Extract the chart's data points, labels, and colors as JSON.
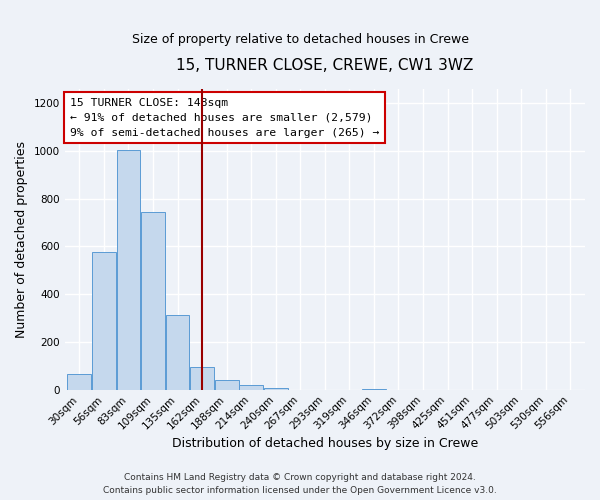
{
  "title": "15, TURNER CLOSE, CREWE, CW1 3WZ",
  "subtitle": "Size of property relative to detached houses in Crewe",
  "xlabel": "Distribution of detached houses by size in Crewe",
  "ylabel": "Number of detached properties",
  "bar_labels": [
    "30sqm",
    "56sqm",
    "83sqm",
    "109sqm",
    "135sqm",
    "162sqm",
    "188sqm",
    "214sqm",
    "240sqm",
    "267sqm",
    "293sqm",
    "319sqm",
    "346sqm",
    "372sqm",
    "398sqm",
    "425sqm",
    "451sqm",
    "477sqm",
    "503sqm",
    "530sqm",
    "556sqm"
  ],
  "bar_values": [
    65,
    575,
    1005,
    745,
    315,
    97,
    40,
    20,
    8,
    0,
    0,
    0,
    5,
    0,
    0,
    0,
    0,
    0,
    0,
    0,
    0
  ],
  "bar_color": "#c5d8ed",
  "bar_edge_color": "#5b9bd5",
  "property_line_x": 5.0,
  "property_line_color": "#990000",
  "annotation_title": "15 TURNER CLOSE: 148sqm",
  "annotation_line1": "← 91% of detached houses are smaller (2,579)",
  "annotation_line2": "9% of semi-detached houses are larger (265) →",
  "annotation_box_color": "#ffffff",
  "annotation_box_edge_color": "#cc0000",
  "ylim": [
    0,
    1260
  ],
  "yticks": [
    0,
    200,
    400,
    600,
    800,
    1000,
    1200
  ],
  "footer_line1": "Contains HM Land Registry data © Crown copyright and database right 2024.",
  "footer_line2": "Contains public sector information licensed under the Open Government Licence v3.0.",
  "background_color": "#eef2f8",
  "grid_color": "#ffffff",
  "title_fontsize": 11,
  "subtitle_fontsize": 9,
  "xlabel_fontsize": 9,
  "ylabel_fontsize": 9,
  "tick_fontsize": 7.5,
  "footer_fontsize": 6.5
}
